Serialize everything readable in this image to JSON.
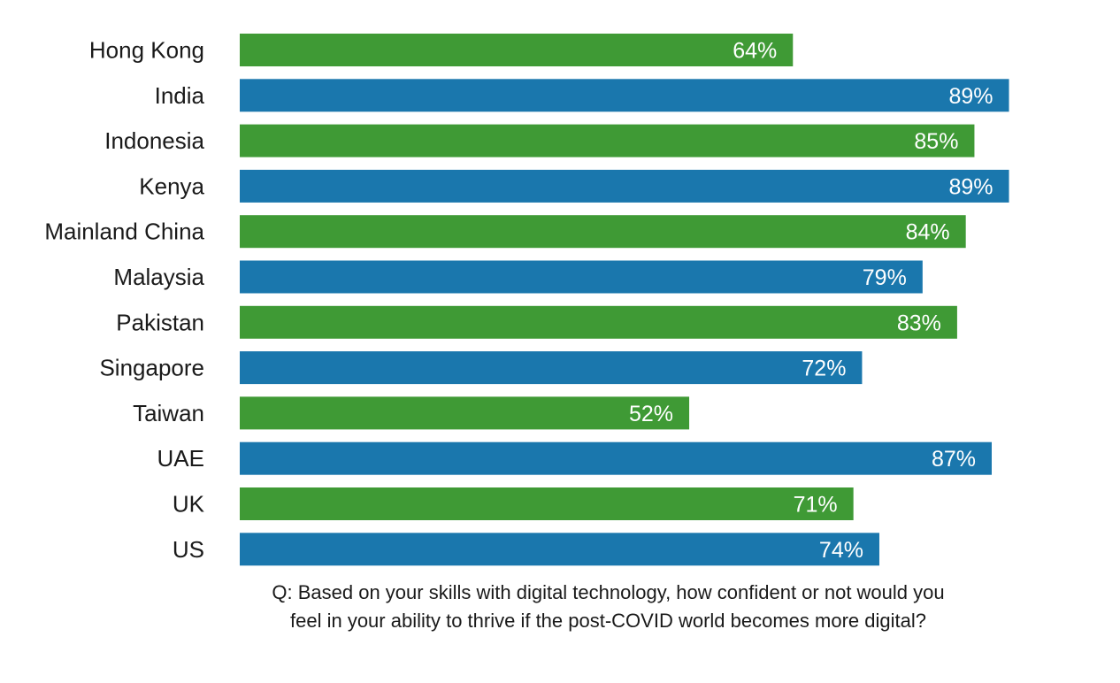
{
  "chart_data": {
    "type": "bar",
    "orientation": "horizontal",
    "categories": [
      "Hong Kong",
      "India",
      "Indonesia",
      "Kenya",
      "Mainland China",
      "Malaysia",
      "Pakistan",
      "Singapore",
      "Taiwan",
      "UAE",
      "UK",
      "US"
    ],
    "values": [
      64,
      89,
      85,
      89,
      84,
      79,
      83,
      72,
      52,
      87,
      71,
      74
    ],
    "value_labels": [
      "64%",
      "89%",
      "85%",
      "89%",
      "84%",
      "79%",
      "83%",
      "72%",
      "52%",
      "87%",
      "71%",
      "74%"
    ],
    "bar_colors": [
      "#3f9a35",
      "#1a77ad"
    ],
    "xlim": [
      0,
      100
    ],
    "grid": false,
    "legend": "none"
  },
  "caption": {
    "line1": "Q: Based on your skills with digital technology, how confident or not would you",
    "line2": "feel in your ability to thrive if the post-COVID world becomes more digital?"
  }
}
